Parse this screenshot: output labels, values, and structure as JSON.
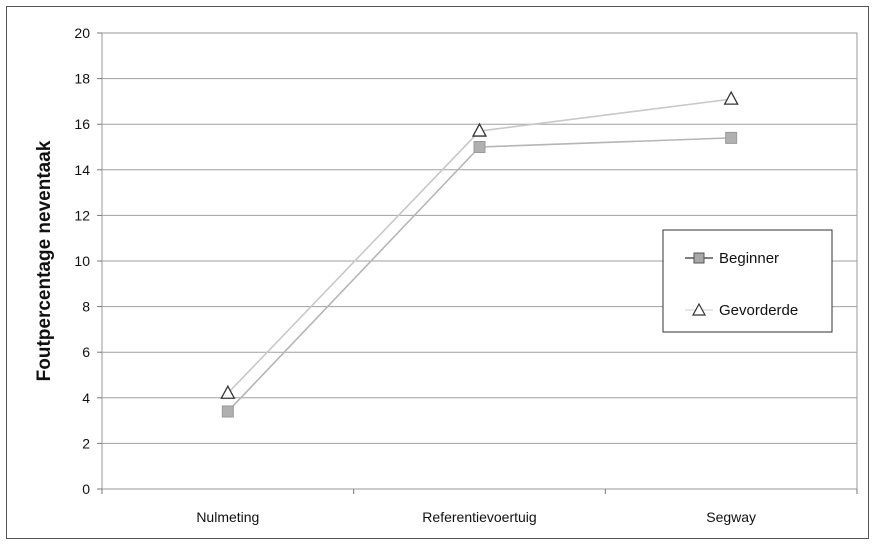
{
  "chart_data": {
    "type": "line",
    "title": "",
    "xlabel": "",
    "ylabel": "Foutpercentage neventaak",
    "categories": [
      "Nulmeting",
      "Referentievoertuig",
      "Segway"
    ],
    "ylim": [
      0,
      20
    ],
    "yticks": [
      0,
      2,
      4,
      6,
      8,
      10,
      12,
      14,
      16,
      18,
      20
    ],
    "grid": true,
    "legend_position": "right",
    "series": [
      {
        "name": "Beginner",
        "values": [
          3.4,
          15.0,
          15.4
        ],
        "color": "#b5b5b5",
        "marker": "square"
      },
      {
        "name": "Gevorderde",
        "values": [
          4.2,
          15.7,
          17.1
        ],
        "color": "#c8c8c8",
        "marker": "triangle"
      }
    ]
  }
}
